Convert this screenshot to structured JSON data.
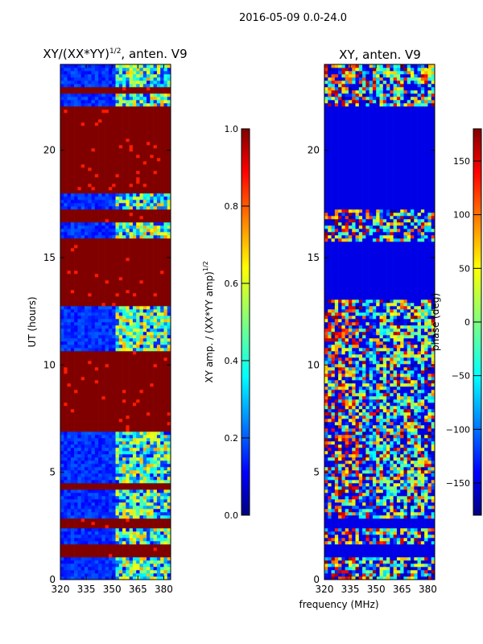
{
  "suptitle": "2016-05-09 0.0-24.0",
  "chart_data": [
    {
      "type": "heatmap",
      "title_main": "XY/(XX*YY)",
      "title_sup": "1/2",
      "title_suffix": ", anten. V9",
      "xlabel": "",
      "ylabel": "UT (hours)",
      "xlim": [
        320,
        384
      ],
      "ylim": [
        0,
        24
      ],
      "xticks": [
        320,
        335,
        350,
        365,
        380
      ],
      "yticks": [
        0,
        5,
        10,
        15,
        20
      ],
      "colorbar": {
        "label_main": "XY amp. / (XX*YY amp)",
        "label_sup": "1/2",
        "range": [
          0.0,
          1.0
        ],
        "ticks": [
          "0.0",
          "0.2",
          "0.4",
          "0.6",
          "0.8",
          "1.0"
        ],
        "colormap": "jet"
      },
      "mostly_saturated_bands_hours": [
        [
          1.1,
          1.6
        ],
        [
          2.4,
          2.9
        ],
        [
          4.2,
          4.5
        ],
        [
          6.9,
          10.6
        ],
        [
          12.8,
          15.9
        ],
        [
          16.6,
          17.3
        ],
        [
          18.0,
          22.0
        ],
        [
          22.6,
          23.0
        ]
      ],
      "active_band_mhz": [
        352,
        384
      ]
    },
    {
      "type": "heatmap",
      "title": "XY, anten. V9",
      "xlabel": "frequency (MHz)",
      "ylabel": "",
      "xlim": [
        320,
        384
      ],
      "ylim": [
        0,
        24
      ],
      "xticks": [
        320,
        335,
        350,
        365,
        380
      ],
      "yticks": [
        0,
        5,
        10,
        15,
        20
      ],
      "colorbar": {
        "label": "phase (deg)",
        "range": [
          -180,
          180
        ],
        "ticks": [
          "−150",
          "−100",
          "−50",
          "0",
          "50",
          "100",
          "150"
        ],
        "colormap": "jet"
      },
      "flagged_bands_hours": [
        [
          1.1,
          1.6
        ],
        [
          2.4,
          2.9
        ],
        [
          13.0,
          15.8
        ],
        [
          17.3,
          18.0
        ],
        [
          18.0,
          22.0
        ]
      ]
    }
  ]
}
